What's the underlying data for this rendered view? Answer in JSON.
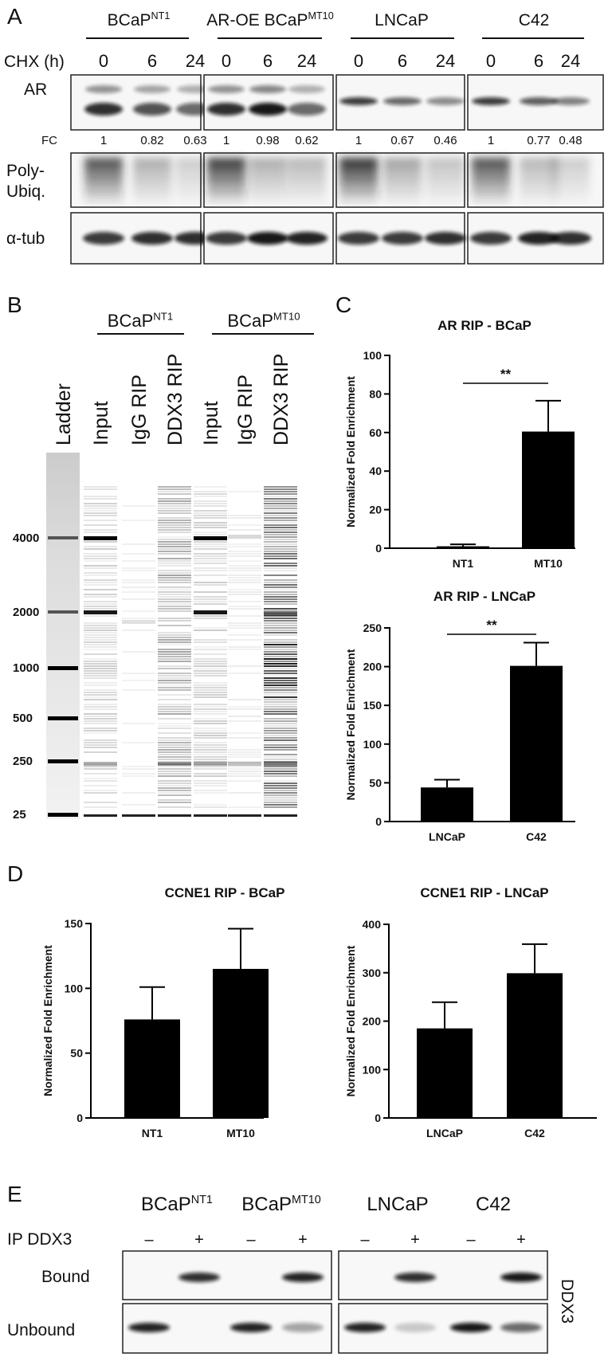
{
  "panel_labels": {
    "a": "A",
    "b": "B",
    "c": "C",
    "d": "D",
    "e": "E"
  },
  "panel_a": {
    "groups": [
      {
        "name": "BCaP",
        "sup": "NT1"
      },
      {
        "name": "AR-OE BCaP",
        "sup": "MT10"
      },
      {
        "name": "LNCaP"
      },
      {
        "name": "C42"
      }
    ],
    "treatment_label": "CHX (h)",
    "timepoints": [
      0,
      6,
      24
    ],
    "row_labels": [
      [
        "AR"
      ],
      [
        "Poly-",
        "Ubiq."
      ],
      [
        "α-tub"
      ]
    ],
    "fc_label": "FC",
    "fold_change": [
      [
        1,
        0.82,
        0.63
      ],
      [
        1,
        0.98,
        0.62
      ],
      [
        1,
        0.67,
        0.46
      ],
      [
        1,
        0.77,
        0.48
      ]
    ]
  },
  "panel_b": {
    "groups": [
      {
        "name": "BCaP",
        "sup": "NT1"
      },
      {
        "name": "BCaP",
        "sup": "MT10"
      }
    ],
    "lanes": [
      "Ladder",
      "Input",
      "IgG RIP",
      "DDX3 RIP",
      "Input",
      "IgG RIP",
      "DDX3 RIP"
    ],
    "ladder_sizes": [
      4000,
      2000,
      1000,
      500,
      250,
      25
    ]
  },
  "chart_data": [
    {
      "type": "bar",
      "title": "AR RIP - BCaP",
      "y_label": "Normalized Fold Enrichment",
      "categories": [
        "NT1",
        "MT10"
      ],
      "values": [
        1,
        60.5
      ],
      "errors": [
        1,
        16
      ],
      "color": "#000000",
      "ylim": [
        0,
        100
      ],
      "yticks": [
        0,
        20,
        40,
        60,
        80,
        100
      ],
      "annotation": "**"
    },
    {
      "type": "bar",
      "title": "AR RIP - LNCaP",
      "y_label": "Normalized Fold Enrichment",
      "categories": [
        "LNCaP",
        "C42"
      ],
      "values": [
        44,
        201
      ],
      "errors": [
        10,
        30
      ],
      "color": "#000000",
      "ylim": [
        0,
        250
      ],
      "yticks": [
        0,
        50,
        100,
        150,
        200,
        250
      ],
      "annotation": "**"
    },
    {
      "type": "bar",
      "title": "CCNE1 RIP - BCaP",
      "y_label": "Normalized Fold Enrichment",
      "categories": [
        "NT1",
        "MT10"
      ],
      "values": [
        76,
        115
      ],
      "errors": [
        25,
        31
      ],
      "color": "#000000",
      "ylim": [
        0,
        150
      ],
      "yticks": [
        0,
        50,
        100,
        150
      ]
    },
    {
      "type": "bar",
      "title": "CCNE1 RIP - LNCaP",
      "y_label": "Normalized Fold Enrichment",
      "categories": [
        "LNCaP",
        "C42"
      ],
      "values": [
        185,
        299
      ],
      "errors": [
        54,
        60
      ],
      "color": "#000000",
      "ylim": [
        0,
        400
      ],
      "yticks": [
        0,
        100,
        200,
        300,
        400
      ]
    }
  ],
  "panel_e": {
    "groups": [
      {
        "name": "BCaP",
        "sup": "NT1"
      },
      {
        "name": "BCaP",
        "sup": "MT10"
      },
      {
        "name": "LNCaP"
      },
      {
        "name": "C42"
      }
    ],
    "ip_label": "IP DDX3",
    "ip_signs": [
      "–",
      "+",
      "–",
      "+",
      "–",
      "+",
      "–",
      "+"
    ],
    "row_labels": [
      "Bound",
      "Unbound"
    ],
    "antibody": "DDX3"
  }
}
